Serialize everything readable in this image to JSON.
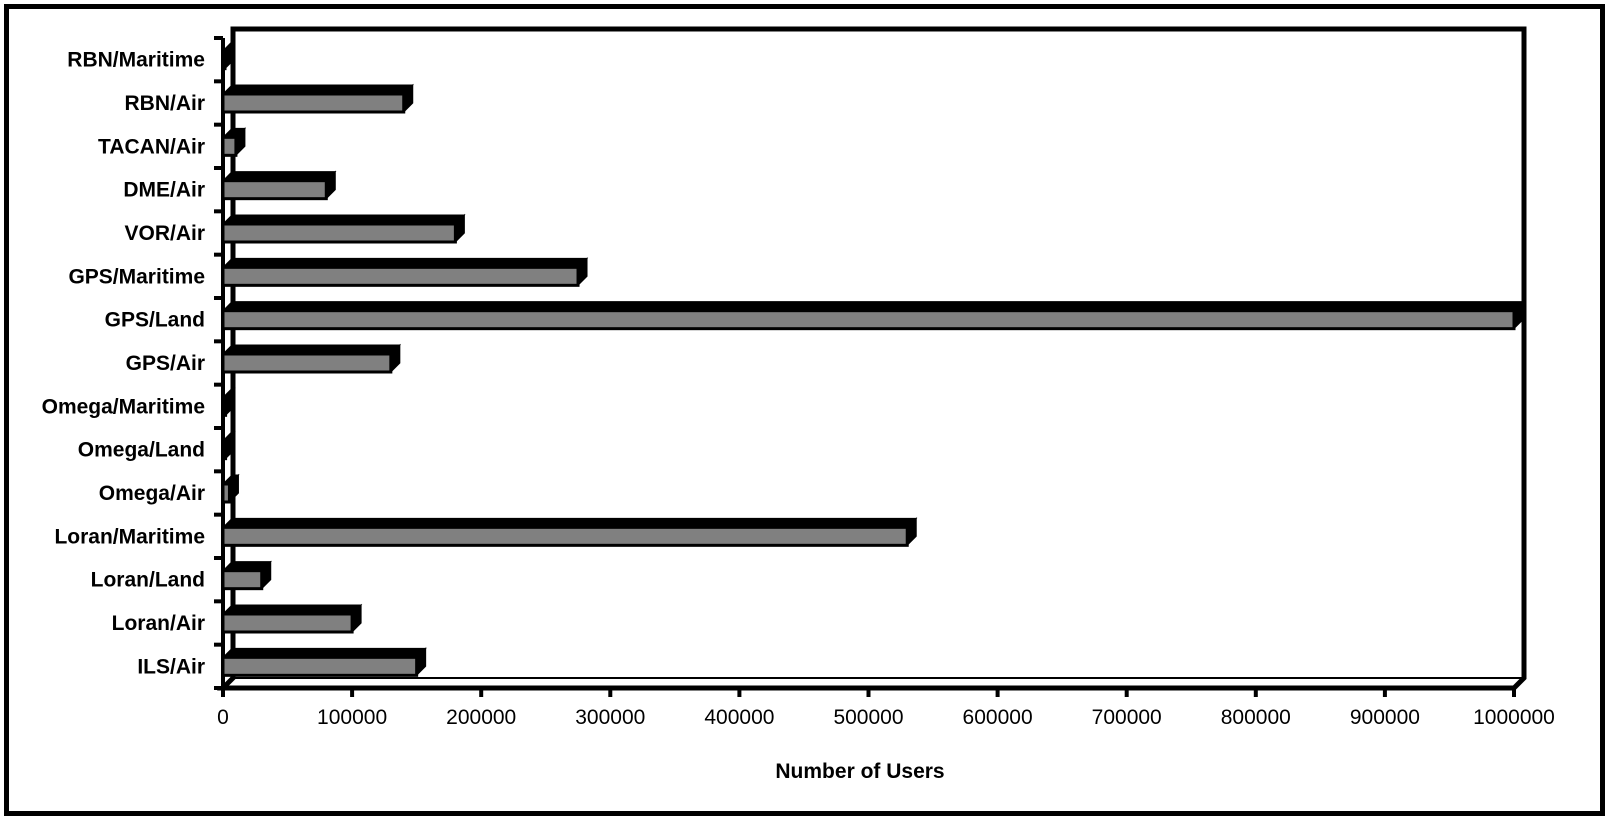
{
  "chart_data": {
    "type": "bar",
    "orientation": "horizontal",
    "style": "3d",
    "categories": [
      "ILS/Air",
      "Loran/Air",
      "Loran/Land",
      "Loran/Maritime",
      "Omega/Air",
      "Omega/Land",
      "Omega/Maritime",
      "GPS/Air",
      "GPS/Land",
      "GPS/Maritime",
      "VOR/Air",
      "DME/Air",
      "TACAN/Air",
      "RBN/Air",
      "RBN/Maritime"
    ],
    "values": [
      150000,
      100000,
      30000,
      530000,
      5000,
      2000,
      2000,
      130000,
      1000000,
      275000,
      180000,
      80000,
      10000,
      140000,
      1000
    ],
    "xlabel": "Number of Users",
    "ylabel": "",
    "title": "",
    "xlim": [
      0,
      1000000
    ],
    "xticks": [
      "0",
      "100000",
      "200000",
      "300000",
      "400000",
      "500000",
      "600000",
      "700000",
      "800000",
      "900000",
      "1000000"
    ],
    "grid": false,
    "legend": "none",
    "colors": {
      "bar_fill": "#808080",
      "bar_shadow": "#000000",
      "frame": "#000000",
      "background": "#ffffff"
    }
  }
}
